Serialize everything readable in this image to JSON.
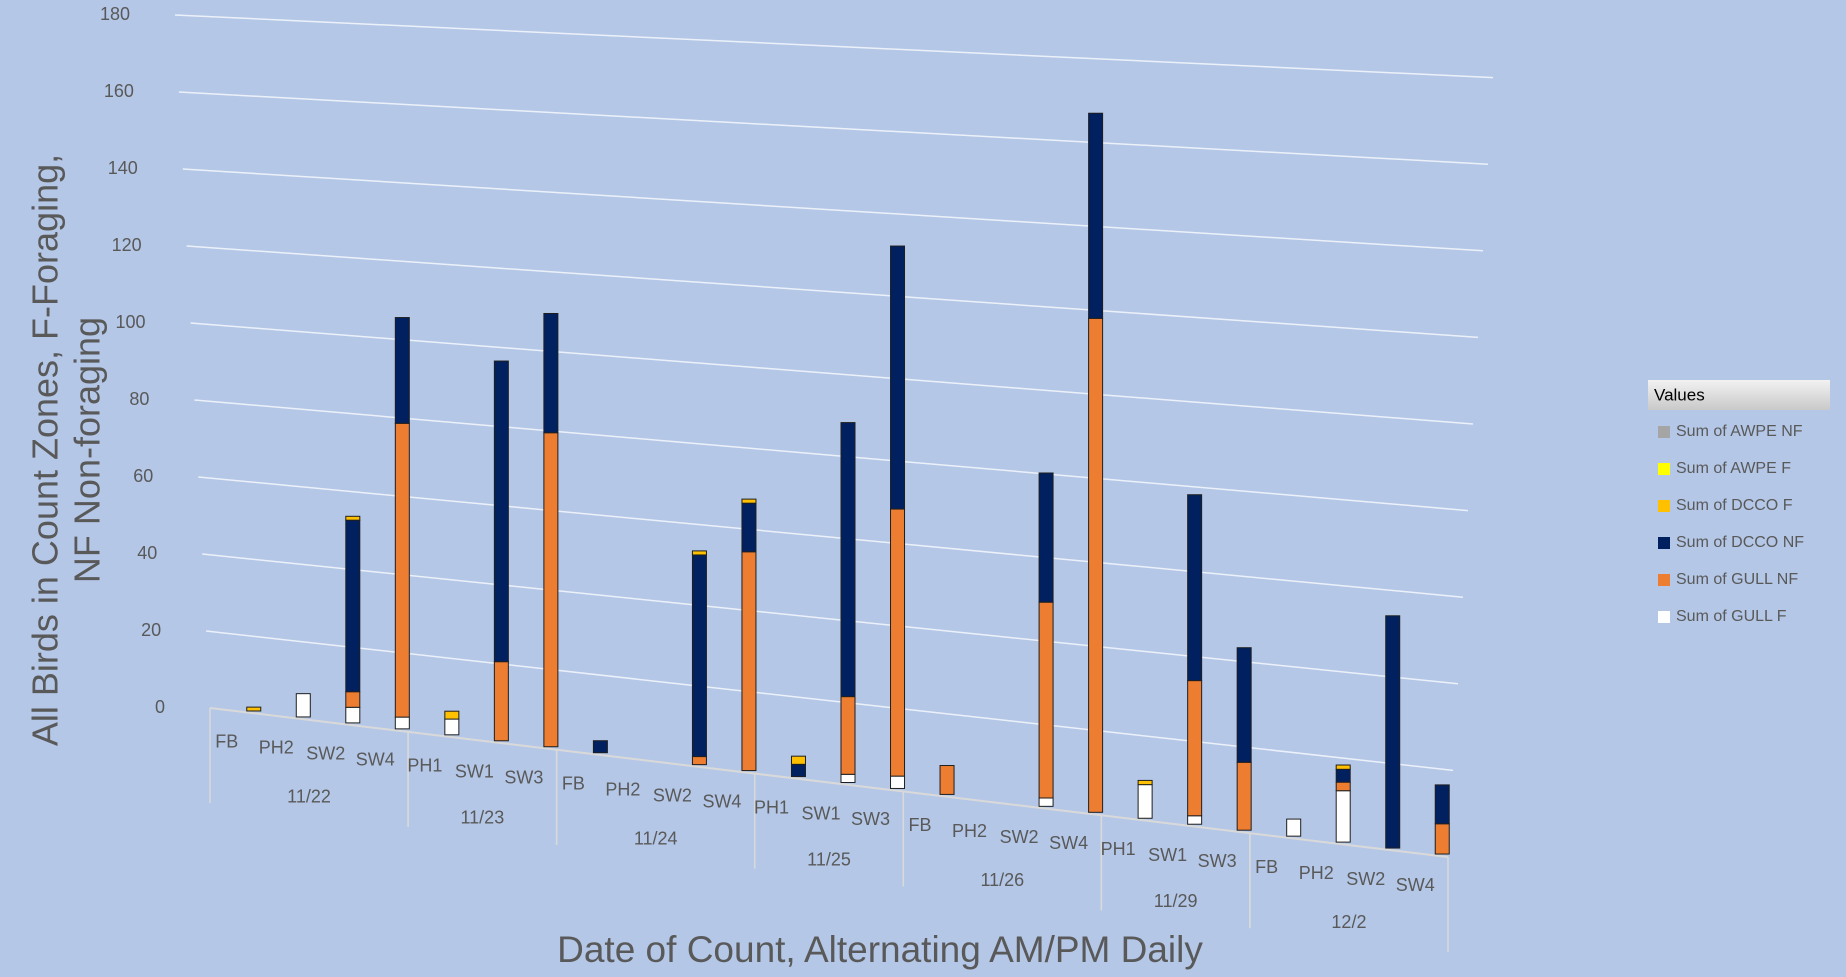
{
  "chart_data": {
    "type": "stacked_bar_3d",
    "y_label": [
      "All Birds in Count Zones, F-Foraging,",
      "NF Non-foraging"
    ],
    "x_label": "Date of Count, Alternating AM/PM Daily",
    "legend_title": "Values",
    "groups": [
      {
        "label": "11/22",
        "categories": [
          "FB",
          "PH2",
          "SW2",
          "SW4"
        ]
      },
      {
        "label": "11/23",
        "categories": [
          "PH1",
          "SW1",
          "SW3"
        ]
      },
      {
        "label": "11/24",
        "categories": [
          "FB",
          "PH2",
          "SW2",
          "SW4"
        ]
      },
      {
        "label": "11/25",
        "categories": [
          "PH1",
          "SW1",
          "SW3"
        ]
      },
      {
        "label": "11/26",
        "categories": [
          "FB",
          "PH2",
          "SW2",
          "SW4"
        ]
      },
      {
        "label": "11/29",
        "categories": [
          "PH1",
          "SW1",
          "SW3"
        ]
      },
      {
        "label": "12/2",
        "categories": [
          "FB",
          "PH2",
          "SW2",
          "SW4"
        ]
      }
    ],
    "series": [
      {
        "name": "Sum of AWPE NF",
        "color": "#a5a5a5",
        "values": [
          0,
          0,
          0,
          0,
          0,
          0,
          0,
          0,
          0,
          0,
          0,
          0,
          0,
          0,
          0,
          0,
          0,
          0,
          0,
          0,
          0,
          0,
          0,
          0,
          0
        ]
      },
      {
        "name": "Sum of AWPE F",
        "color": "#ffff00",
        "values": [
          0,
          0,
          0,
          0,
          0,
          0,
          0,
          0,
          0,
          0,
          0,
          0,
          0,
          0,
          0,
          0,
          0,
          0,
          0,
          0,
          0,
          0,
          0,
          0,
          0
        ]
      },
      {
        "name": "Sum of DCCO F",
        "color": "#ffc000",
        "values": [
          1,
          0,
          1,
          0,
          2,
          0,
          0,
          0,
          0,
          1,
          1,
          2,
          0,
          0,
          0,
          0,
          0,
          0,
          1,
          0,
          0,
          0,
          1,
          0,
          0
        ]
      },
      {
        "name": "Sum of DCCO NF",
        "color": "#002060",
        "values": [
          0,
          0,
          44,
          27,
          0,
          76,
          30,
          3,
          0,
          50,
          12,
          3,
          67,
          64,
          0,
          0,
          31,
          49,
          0,
          44,
          27,
          0,
          3,
          54,
          9
        ]
      },
      {
        "name": "Sum of GULL NF",
        "color": "#ed7d31",
        "values": [
          0,
          0,
          4,
          75,
          0,
          20,
          79,
          0,
          0,
          2,
          54,
          0,
          19,
          65,
          7,
          0,
          47,
          118,
          0,
          32,
          16,
          0,
          2,
          0,
          7
        ]
      },
      {
        "name": "Sum of GULL F",
        "color": "#ffffff",
        "values": [
          0,
          6,
          4,
          3,
          4,
          0,
          0,
          0,
          0,
          0,
          0,
          0,
          2,
          3,
          0,
          0,
          2,
          0,
          8,
          2,
          0,
          4,
          12,
          0,
          0
        ]
      }
    ],
    "ylim": [
      0,
      180
    ],
    "yticks": [
      0,
      20,
      40,
      60,
      80,
      100,
      120,
      140,
      160,
      180
    ],
    "grid": true
  }
}
